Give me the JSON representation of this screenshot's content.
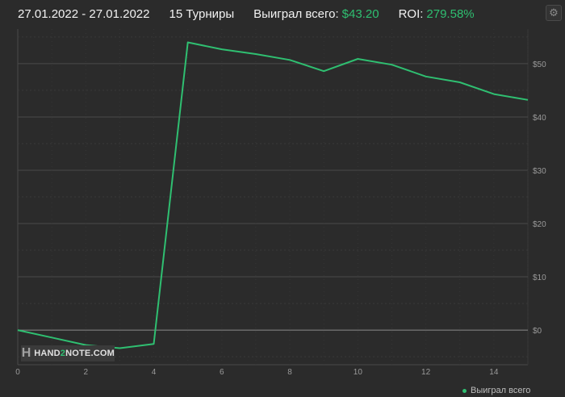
{
  "header": {
    "date_range": "27.01.2022 - 27.01.2022",
    "tournaments": "15 Турниры",
    "won_label": "Выиграл всего:",
    "won_value": "$43.20",
    "roi_label": "ROI:",
    "roi_value": "279.58%"
  },
  "settings_icon": "gear-icon",
  "logo": {
    "pre": "HAND",
    "two": "2",
    "post": "NOTE.COM"
  },
  "colors": {
    "line": "#2fbf71",
    "background": "#2b2b2b",
    "grid": "#4a4a4a",
    "zero_line": "#8a8a8a"
  },
  "chart_data": {
    "type": "line",
    "x": [
      0,
      1,
      2,
      3,
      4,
      5,
      6,
      7,
      8,
      9,
      10,
      11,
      12,
      13,
      14,
      15
    ],
    "series": [
      {
        "name": "Выиграл всего",
        "values": [
          0,
          -1.4,
          -2.8,
          -3.4,
          -2.6,
          54.0,
          52.7,
          51.8,
          50.7,
          48.6,
          50.9,
          49.8,
          47.6,
          46.5,
          44.3,
          43.2
        ]
      }
    ],
    "xlim": [
      0,
      15
    ],
    "ylim": [
      -6.5,
      56.5
    ],
    "x_ticks": [
      "0",
      "2",
      "4",
      "6",
      "8",
      "10",
      "12",
      "14"
    ],
    "y_ticks": [
      "$0",
      "$10",
      "$20",
      "$30",
      "$40",
      "$50"
    ],
    "y_tick_values": [
      0,
      10,
      20,
      30,
      40,
      50
    ],
    "x_tick_values": [
      0,
      2,
      4,
      6,
      8,
      10,
      12,
      14
    ],
    "grid": true,
    "legend": "bottom-right"
  }
}
